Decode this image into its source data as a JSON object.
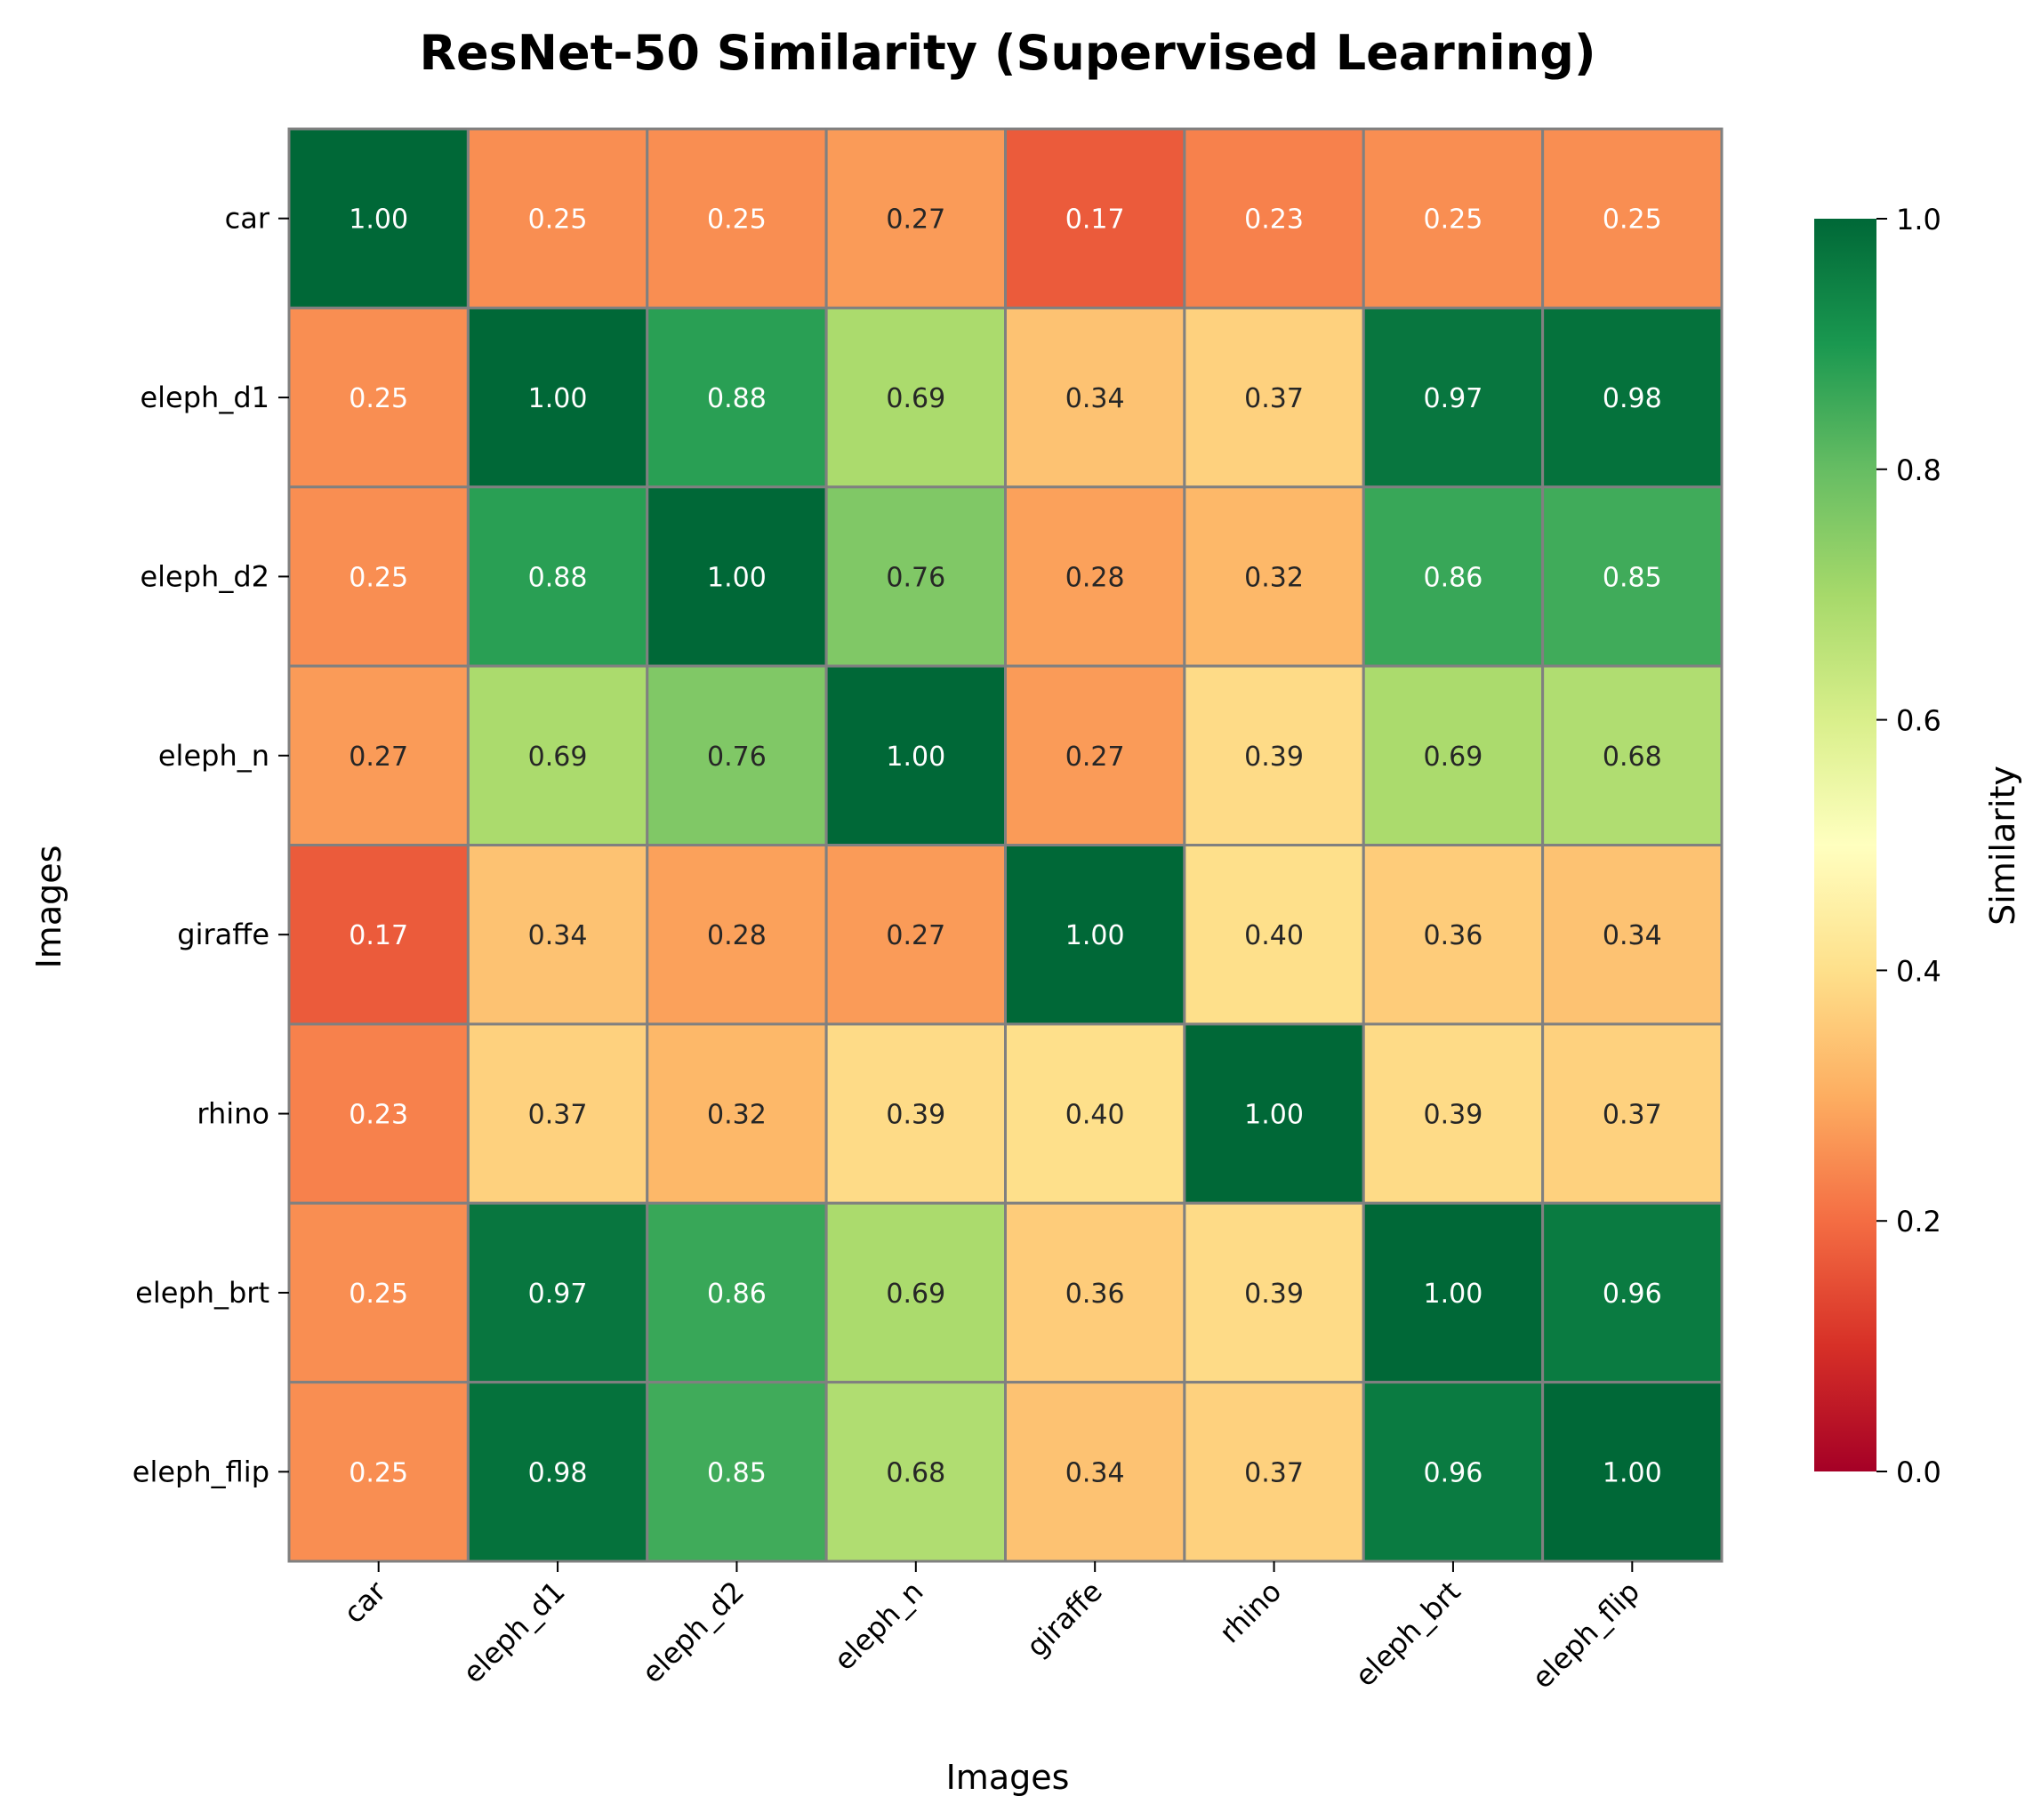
{
  "chart_data": {
    "type": "heatmap",
    "title": "ResNet-50 Similarity (Supervised Learning)",
    "xlabel": "Images",
    "ylabel": "Images",
    "x_categories": [
      "car",
      "eleph_d1",
      "eleph_d2",
      "eleph_n",
      "giraffe",
      "rhino",
      "eleph_brt",
      "eleph_flip"
    ],
    "y_categories": [
      "car",
      "eleph_d1",
      "eleph_d2",
      "eleph_n",
      "giraffe",
      "rhino",
      "eleph_brt",
      "eleph_flip"
    ],
    "values": [
      [
        1.0,
        0.25,
        0.25,
        0.27,
        0.17,
        0.23,
        0.25,
        0.25
      ],
      [
        0.25,
        1.0,
        0.88,
        0.69,
        0.34,
        0.37,
        0.97,
        0.98
      ],
      [
        0.25,
        0.88,
        1.0,
        0.76,
        0.28,
        0.32,
        0.86,
        0.85
      ],
      [
        0.27,
        0.69,
        0.76,
        1.0,
        0.27,
        0.39,
        0.69,
        0.68
      ],
      [
        0.17,
        0.34,
        0.28,
        0.27,
        1.0,
        0.4,
        0.36,
        0.34
      ],
      [
        0.23,
        0.37,
        0.32,
        0.39,
        0.4,
        1.0,
        0.39,
        0.37
      ],
      [
        0.25,
        0.97,
        0.86,
        0.69,
        0.36,
        0.39,
        1.0,
        0.96
      ],
      [
        0.25,
        0.98,
        0.85,
        0.68,
        0.34,
        0.37,
        0.96,
        1.0
      ]
    ],
    "value_format": "2 decimals",
    "colormap": "RdYlGn",
    "colorbar": {
      "label": "Similarity",
      "range": [
        0,
        1
      ],
      "ticks": [
        0.0,
        0.2,
        0.4,
        0.6,
        0.8,
        1.0
      ],
      "tick_labels": [
        "0.0",
        "0.2",
        "0.4",
        "0.6",
        "0.8",
        "1.0"
      ],
      "placement": "right"
    },
    "cell_border_color": "#808080",
    "grid": false
  }
}
